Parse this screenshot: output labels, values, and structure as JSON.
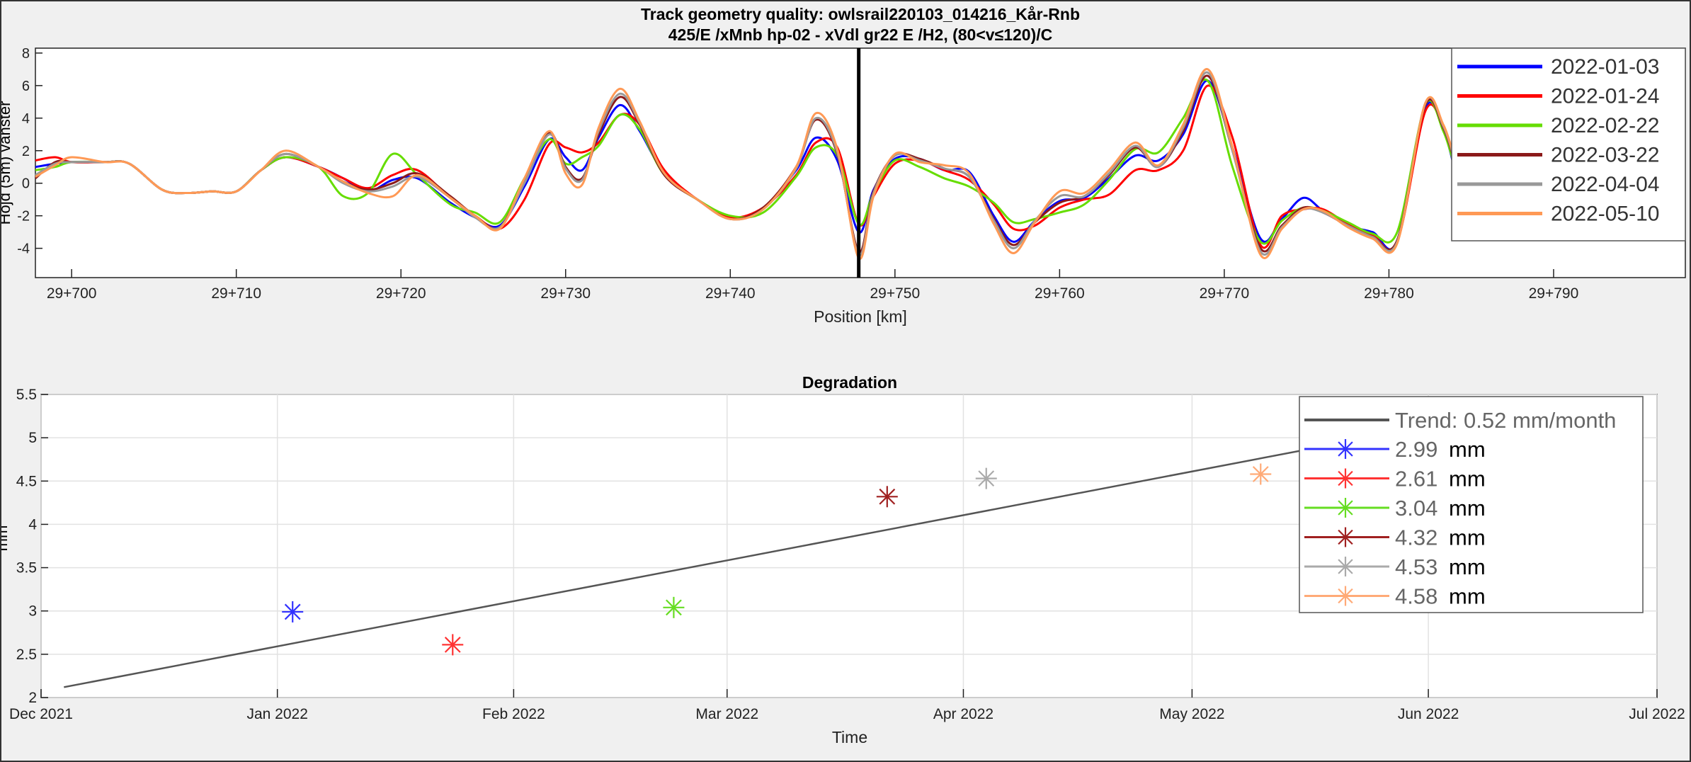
{
  "chart_data": [
    {
      "type": "line",
      "title": "Track geometry quality: owlsrail220103_014216_Kår-Rnb",
      "subtitle": "425/E /xMnb hp-02 - xVdl gr22 E /H2, (80<v≤120)/C",
      "xlabel": "Position [km]",
      "ylabel": "Höjd (5m) vänster",
      "xlim": [
        29697.8,
        29798
      ],
      "ylim": [
        -5.8,
        8.3
      ],
      "yticks": [
        -4,
        -2,
        0,
        2,
        4,
        6,
        8
      ],
      "xticks": [
        {
          "value": 29700,
          "label": "29+700"
        },
        {
          "value": 29710,
          "label": "29+710"
        },
        {
          "value": 29720,
          "label": "29+720"
        },
        {
          "value": 29730,
          "label": "29+730"
        },
        {
          "value": 29740,
          "label": "29+740"
        },
        {
          "value": 29750,
          "label": "29+750"
        },
        {
          "value": 29760,
          "label": "29+760"
        },
        {
          "value": 29770,
          "label": "29+770"
        },
        {
          "value": 29780,
          "label": "29+780"
        },
        {
          "value": 29790,
          "label": "29+790"
        }
      ],
      "marker_line_x": 29747.8,
      "grid": false,
      "legend": "top-right",
      "series": [
        {
          "name": "2022-01-03",
          "color": "#0000ff",
          "x": [
            29697.8,
            29699,
            29700,
            29702,
            29703.5,
            29705.5,
            29707,
            29708.5,
            29710,
            29711.5,
            29713,
            29715,
            29716.5,
            29718,
            29719.5,
            29721,
            29723,
            29724.5,
            29726,
            29727.5,
            29729,
            29730,
            29731,
            29732,
            29733.3,
            29734.5,
            29736,
            29738,
            29740,
            29742,
            29744,
            29745.2,
            29746.5,
            29747.8,
            29748.7,
            29750,
            29751.5,
            29753,
            29754.5,
            29756,
            29757.2,
            29758.5,
            29760,
            29761.5,
            29763,
            29764.6,
            29766,
            29767.5,
            29769,
            29770.5,
            29772.2,
            29773.5,
            29774.8,
            29776,
            29777.5,
            29779,
            29780.5,
            29782.2,
            29783.3,
            29784
          ],
          "y": [
            1.0,
            1.2,
            1.3,
            1.3,
            1.2,
            -0.4,
            -0.6,
            -0.5,
            -0.5,
            0.8,
            1.6,
            1.0,
            0.3,
            -0.5,
            0.2,
            0.3,
            -1.2,
            -2.1,
            -2.6,
            -0.2,
            2.7,
            1.6,
            0.8,
            2.8,
            4.8,
            3.2,
            0.6,
            -1.0,
            -2.1,
            -1.5,
            0.8,
            2.8,
            1.4,
            -3.0,
            -0.4,
            1.5,
            1.5,
            0.8,
            0.7,
            -2.0,
            -3.6,
            -2.3,
            -1.1,
            -0.9,
            0.3,
            1.7,
            1.4,
            3.0,
            6.3,
            2.2,
            -3.4,
            -2.2,
            -0.9,
            -1.7,
            -2.6,
            -3.0,
            -3.6,
            4.6,
            3.3,
            0.8
          ]
        },
        {
          "name": "2022-01-24",
          "color": "#ff0000",
          "x": [
            29697.8,
            29699,
            29700,
            29702,
            29703.5,
            29705.5,
            29707,
            29708.5,
            29710,
            29711.5,
            29713,
            29715,
            29716.5,
            29718,
            29719.5,
            29721,
            29723,
            29724.5,
            29726,
            29727.5,
            29729,
            29730,
            29731,
            29732,
            29733.3,
            29734.5,
            29736,
            29738,
            29740,
            29742,
            29744,
            29745.2,
            29746.5,
            29747.8,
            29748.7,
            29750,
            29751.5,
            29753,
            29754.5,
            29756,
            29757.2,
            29758.5,
            29760,
            29761.5,
            29763,
            29764.6,
            29766,
            29767.5,
            29769,
            29770.5,
            29772.2,
            29773.5,
            29774.8,
            29776,
            29777.5,
            29779,
            29780.5,
            29782.2,
            29783.3,
            29784
          ],
          "y": [
            1.4,
            1.6,
            1.3,
            1.3,
            1.2,
            -0.4,
            -0.6,
            -0.5,
            -0.5,
            0.8,
            1.6,
            1.0,
            0.3,
            -0.3,
            0.5,
            0.8,
            -0.9,
            -2.0,
            -2.8,
            -1.0,
            2.4,
            2.2,
            1.9,
            2.5,
            4.2,
            3.6,
            0.8,
            -1.0,
            -2.1,
            -1.5,
            0.5,
            2.5,
            2.2,
            -2.5,
            -0.8,
            1.2,
            1.4,
            0.8,
            0.2,
            -1.3,
            -2.8,
            -2.6,
            -1.5,
            -1.0,
            -0.7,
            0.8,
            0.8,
            2.0,
            6.0,
            2.8,
            -3.8,
            -2.0,
            -1.6,
            -1.6,
            -2.5,
            -3.2,
            -3.6,
            4.4,
            3.5,
            1.2
          ]
        },
        {
          "name": "2022-02-22",
          "color": "#66dd00",
          "x": [
            29697.8,
            29699,
            29700,
            29702,
            29703.5,
            29705.5,
            29707,
            29708.5,
            29710,
            29711.5,
            29713,
            29715,
            29716.5,
            29718,
            29719.5,
            29721,
            29723,
            29724.5,
            29726,
            29727.5,
            29729,
            29730,
            29731,
            29732,
            29733.3,
            29734.5,
            29736,
            29738,
            29740,
            29742,
            29744,
            29745.2,
            29746.5,
            29747.8,
            29748.7,
            29750,
            29751.5,
            29753,
            29754.5,
            29756,
            29757.2,
            29758.5,
            29760,
            29761.5,
            29763,
            29764.6,
            29766,
            29767.5,
            29769,
            29770.5,
            29772.2,
            29773.5,
            29774.8,
            29776,
            29777.5,
            29779,
            29780.5,
            29782.2,
            29783.3,
            29784
          ],
          "y": [
            0.8,
            1.0,
            1.3,
            1.3,
            1.2,
            -0.4,
            -0.6,
            -0.5,
            -0.5,
            0.8,
            1.6,
            1.0,
            -0.8,
            -0.6,
            1.8,
            0.5,
            -1.3,
            -1.8,
            -2.4,
            0.3,
            2.7,
            1.2,
            1.6,
            2.3,
            4.2,
            3.3,
            0.5,
            -1.0,
            -2.0,
            -1.8,
            0.4,
            2.2,
            1.7,
            -2.5,
            -0.6,
            1.4,
            1.0,
            0.3,
            -0.2,
            -1.2,
            -2.4,
            -2.2,
            -1.8,
            -1.3,
            0.2,
            2.1,
            1.9,
            4.0,
            6.3,
            1.0,
            -3.6,
            -2.3,
            -1.5,
            -1.7,
            -2.4,
            -3.1,
            -3.0,
            4.8,
            3.2,
            1.0
          ]
        },
        {
          "name": "2022-03-22",
          "color": "#8b1a1a",
          "x": [
            29697.8,
            29699,
            29700,
            29702,
            29703.5,
            29705.5,
            29707,
            29708.5,
            29710,
            29711.5,
            29713,
            29715,
            29716.5,
            29718,
            29719.5,
            29721,
            29723,
            29724.5,
            29726,
            29727.5,
            29729,
            29730,
            29731,
            29732,
            29733.3,
            29734.5,
            29736,
            29738,
            29740,
            29742,
            29744,
            29745.2,
            29746.5,
            29747.8,
            29748.7,
            29750,
            29751.5,
            29753,
            29754.5,
            29756,
            29757.2,
            29758.5,
            29760,
            29761.5,
            29763,
            29764.6,
            29766,
            29767.5,
            29769,
            29770.5,
            29772.2,
            29773.5,
            29774.8,
            29776,
            29777.5,
            29779,
            29780.5,
            29782.2,
            29783.3,
            29784
          ],
          "y": [
            0.3,
            1.3,
            1.3,
            1.3,
            1.2,
            -0.4,
            -0.6,
            -0.5,
            -0.5,
            0.8,
            1.8,
            1.0,
            0.1,
            -0.4,
            0.0,
            0.6,
            -0.8,
            -2.0,
            -2.7,
            0.2,
            3.1,
            1.0,
            0.3,
            3.0,
            5.3,
            3.6,
            0.5,
            -1.0,
            -2.2,
            -1.5,
            1.0,
            3.9,
            1.8,
            -4.2,
            -0.5,
            1.7,
            1.5,
            0.9,
            0.4,
            -2.2,
            -3.8,
            -2.4,
            -1.2,
            -0.8,
            0.5,
            2.2,
            1.0,
            3.2,
            6.6,
            2.0,
            -4.0,
            -2.6,
            -1.5,
            -1.8,
            -2.6,
            -3.3,
            -3.5,
            4.8,
            3.4,
            1.3
          ]
        },
        {
          "name": "2022-04-04",
          "color": "#999999",
          "x": [
            29697.8,
            29699,
            29700,
            29702,
            29703.5,
            29705.5,
            29707,
            29708.5,
            29710,
            29711.5,
            29713,
            29715,
            29716.5,
            29718,
            29719.5,
            29721,
            29723,
            29724.5,
            29726,
            29727.5,
            29729,
            29730,
            29731,
            29732,
            29733.3,
            29734.5,
            29736,
            29738,
            29740,
            29742,
            29744,
            29745.2,
            29746.5,
            29747.8,
            29748.7,
            29750,
            29751.5,
            29753,
            29754.5,
            29756,
            29757.2,
            29758.5,
            29760,
            29761.5,
            29763,
            29764.6,
            29766,
            29767.5,
            29769,
            29770.5,
            29772.2,
            29773.5,
            29774.8,
            29776,
            29777.5,
            29779,
            29780.5,
            29782.2,
            29783.3,
            29784
          ],
          "y": [
            0.5,
            1.2,
            1.3,
            1.3,
            1.2,
            -0.4,
            -0.6,
            -0.5,
            -0.5,
            0.8,
            1.8,
            1.0,
            0.0,
            -0.5,
            -0.2,
            0.4,
            -0.9,
            -2.1,
            -2.7,
            0.0,
            3.0,
            0.9,
            0.2,
            3.2,
            5.5,
            3.7,
            0.6,
            -1.0,
            -2.2,
            -1.6,
            0.9,
            4.0,
            1.9,
            -4.4,
            -0.6,
            1.7,
            1.4,
            0.9,
            0.4,
            -2.3,
            -4.0,
            -2.3,
            -0.8,
            -0.8,
            0.6,
            2.3,
            1.0,
            3.4,
            6.8,
            2.0,
            -4.2,
            -2.7,
            -1.6,
            -1.8,
            -2.6,
            -3.3,
            -3.6,
            4.9,
            3.5,
            1.4
          ]
        },
        {
          "name": "2022-05-10",
          "color": "#ff9955",
          "x": [
            29697.8,
            29699,
            29700,
            29702,
            29703.5,
            29705.5,
            29707,
            29708.5,
            29710,
            29711.5,
            29713,
            29715,
            29716.5,
            29718,
            29719.5,
            29721,
            29723,
            29724.5,
            29726,
            29727.5,
            29729,
            29730,
            29731,
            29732,
            29733.3,
            29734.5,
            29736,
            29738,
            29740,
            29742,
            29744,
            29745.2,
            29746.5,
            29747.8,
            29748.7,
            29750,
            29751.5,
            29753,
            29754.5,
            29756,
            29757.2,
            29758.5,
            29760,
            29761.5,
            29763,
            29764.6,
            29766,
            29767.5,
            29769,
            29770.5,
            29772.2,
            29773.5,
            29774.8,
            29776,
            29777.5,
            29779,
            29780.5,
            29782.2,
            29783.3,
            29784
          ],
          "y": [
            0.4,
            1.1,
            1.6,
            1.3,
            1.2,
            -0.4,
            -0.6,
            -0.5,
            -0.5,
            0.8,
            2.0,
            1.0,
            0.1,
            -0.6,
            -0.8,
            0.5,
            -0.9,
            -2.0,
            -2.8,
            0.3,
            3.2,
            0.6,
            -0.1,
            3.4,
            5.8,
            3.8,
            0.6,
            -1.0,
            -2.2,
            -1.6,
            1.0,
            4.3,
            2.1,
            -4.6,
            -0.8,
            1.8,
            1.3,
            1.1,
            0.6,
            -2.5,
            -4.3,
            -2.4,
            -0.5,
            -0.6,
            0.8,
            2.5,
            1.1,
            3.6,
            7.0,
            2.2,
            -4.4,
            -2.8,
            -1.6,
            -1.7,
            -2.7,
            -3.4,
            -3.7,
            4.9,
            3.6,
            1.5
          ]
        }
      ]
    },
    {
      "type": "scatter",
      "title": "Degradation",
      "xlabel": "Time",
      "ylabel": "mm",
      "xlim": [
        "2021-12-01",
        "2022-07-01"
      ],
      "ylim": [
        2,
        5.5
      ],
      "yticks": [
        2,
        2.5,
        3,
        3.5,
        4,
        4.5,
        5,
        5.5
      ],
      "xticks": [
        {
          "value": "2021-12-01",
          "label": "Dec 2021"
        },
        {
          "value": "2022-01-01",
          "label": "Jan 2022"
        },
        {
          "value": "2022-02-01",
          "label": "Feb 2022"
        },
        {
          "value": "2022-03-01",
          "label": "Mar 2022"
        },
        {
          "value": "2022-04-01",
          "label": "Apr 2022"
        },
        {
          "value": "2022-05-01",
          "label": "May 2022"
        },
        {
          "value": "2022-06-01",
          "label": "Jun 2022"
        },
        {
          "value": "2022-07-01",
          "label": "Jul 2022"
        }
      ],
      "grid": true,
      "legend": "top-right",
      "trend": {
        "label": "Trend: 0.52 mm/month",
        "color": "#555555",
        "x": [
          "2021-12-04",
          "2022-05-17"
        ],
        "y": [
          2.12,
          4.88
        ]
      },
      "points": [
        {
          "date": "2022-01-03",
          "value": 2.99,
          "label": "2.99",
          "unit": "mm",
          "color": "#3333ff"
        },
        {
          "date": "2022-01-24",
          "value": 2.61,
          "label": "2.61",
          "unit": "mm",
          "color": "#ff3333"
        },
        {
          "date": "2022-02-22",
          "value": 3.04,
          "label": "3.04",
          "unit": "mm",
          "color": "#66dd22"
        },
        {
          "date": "2022-03-22",
          "value": 4.32,
          "label": "4.32",
          "unit": "mm",
          "color": "#a02020"
        },
        {
          "date": "2022-04-04",
          "value": 4.53,
          "label": "4.53",
          "unit": "mm",
          "color": "#aaaaaa"
        },
        {
          "date": "2022-05-10",
          "value": 4.58,
          "label": "4.58",
          "unit": "mm",
          "color": "#ffaa77"
        }
      ]
    }
  ]
}
